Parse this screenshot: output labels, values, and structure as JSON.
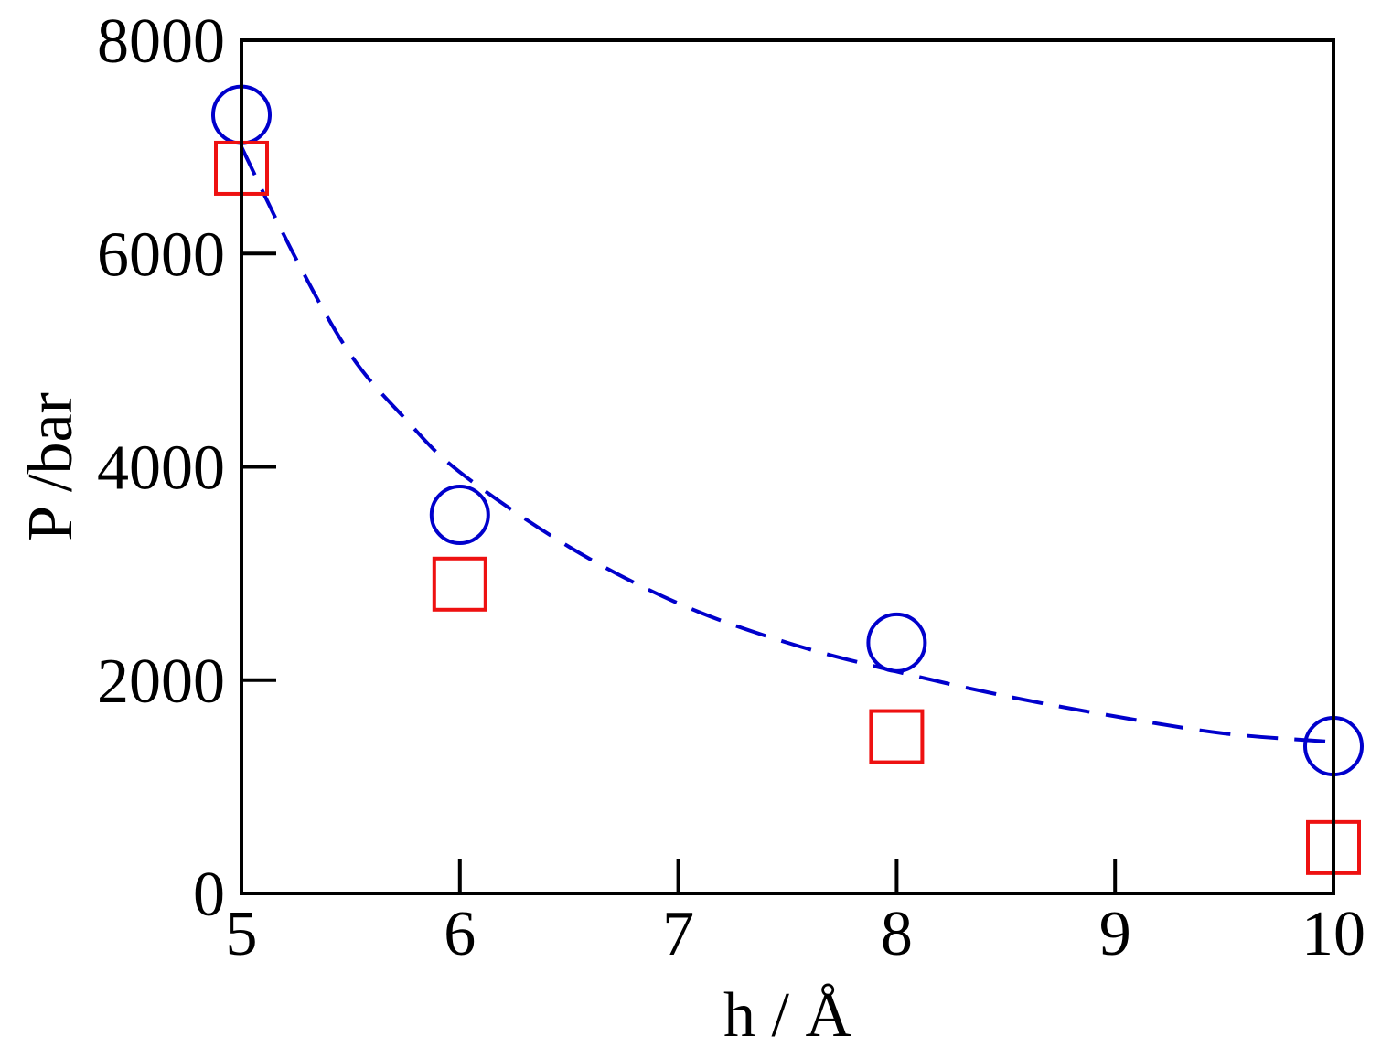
{
  "chart_data": {
    "type": "scatter",
    "title": "",
    "xlabel": "h / Å",
    "ylabel": "P /bar",
    "xlim": [
      5,
      10
    ],
    "ylim": [
      0,
      8000
    ],
    "x_ticks": [
      5,
      6,
      7,
      8,
      9,
      10
    ],
    "y_ticks": [
      0,
      2000,
      4000,
      6000,
      8000
    ],
    "grid": false,
    "legend": "none",
    "series": [
      {
        "marker": "circle",
        "color": "#0000cc",
        "x": [
          5,
          6,
          8,
          10
        ],
        "y": [
          7300,
          3550,
          2350,
          1380
        ]
      },
      {
        "marker": "square",
        "color": "#ee1111",
        "x": [
          5,
          6,
          8,
          10
        ],
        "y": [
          6800,
          2900,
          1470,
          430
        ]
      }
    ],
    "fit_line": {
      "style": "dashed",
      "color": "#0000cc",
      "x": [
        5,
        5.25,
        5.5,
        5.75,
        6,
        6.5,
        7,
        7.5,
        8,
        8.5,
        9,
        9.5,
        10
      ],
      "y": [
        7000,
        5950,
        5050,
        4450,
        3950,
        3250,
        2720,
        2350,
        2080,
        1850,
        1660,
        1500,
        1420
      ]
    }
  }
}
